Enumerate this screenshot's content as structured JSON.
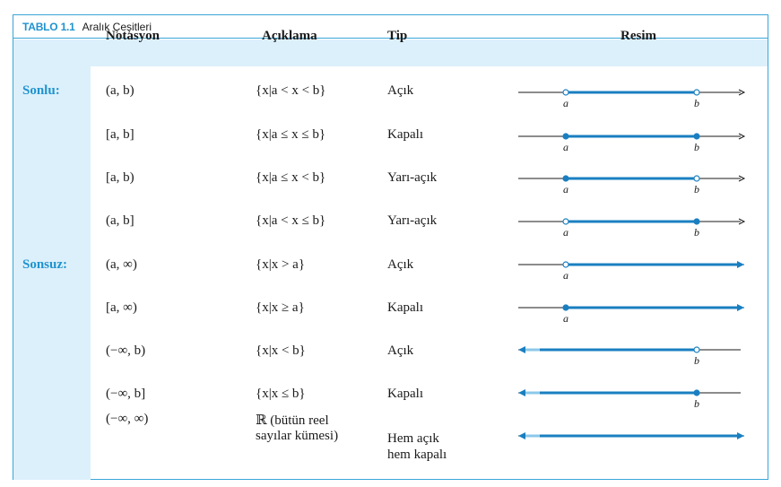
{
  "table": {
    "tag": "TABLO 1.1",
    "title": "Aralık Çeşitleri",
    "headers": {
      "notation": "Notasyon",
      "description": "Açıklama",
      "type": "Tip",
      "picture": "Resim"
    },
    "groups": {
      "finite": "Sonlu:",
      "infinite": "Sonsuz:"
    },
    "rows": [
      {
        "notation": "(a, b)",
        "description": "{x|a < x < b}",
        "type": "Açık",
        "left": "open",
        "right": "open",
        "left_label": "a",
        "right_label": "b"
      },
      {
        "notation": "[a, b]",
        "description": "{x|a ≤ x ≤ b}",
        "type": "Kapalı",
        "left": "closed",
        "right": "closed",
        "left_label": "a",
        "right_label": "b"
      },
      {
        "notation": "[a, b)",
        "description": "{x|a ≤ x < b}",
        "type": "Yarı-açık",
        "left": "closed",
        "right": "open",
        "left_label": "a",
        "right_label": "b"
      },
      {
        "notation": "(a, b]",
        "description": "{x|a < x ≤ b}",
        "type": "Yarı-açık",
        "left": "open",
        "right": "closed",
        "left_label": "a",
        "right_label": "b"
      },
      {
        "notation": "(a, ∞)",
        "description": "{x|x > a}",
        "type": "Açık",
        "left": "open",
        "right": "infinity",
        "left_label": "a",
        "right_label": ""
      },
      {
        "notation": "[a, ∞)",
        "description": "{x|x ≥ a}",
        "type": "Kapalı",
        "left": "closed",
        "right": "infinity",
        "left_label": "a",
        "right_label": ""
      },
      {
        "notation": "(−∞, b)",
        "description": "{x|x < b}",
        "type": "Açık",
        "left": "infinity",
        "right": "open",
        "left_label": "",
        "right_label": "b"
      },
      {
        "notation": "(−∞, b]",
        "description": "{x|x ≤ b}",
        "type": "Kapalı",
        "left": "infinity",
        "right": "closed",
        "left_label": "",
        "right_label": "b"
      },
      {
        "notation": "(−∞, ∞)",
        "description_line1": "ℝ (bütün reel",
        "description_line2": "sayılar kümesi)",
        "type_line1": "Hem açık",
        "type_line2": "hem kapalı",
        "left": "infinity",
        "right": "infinity",
        "left_label": "",
        "right_label": ""
      }
    ]
  },
  "colors": {
    "accent": "#1f93cf",
    "band": "#dcf0fb",
    "line": "#1a1a1a",
    "interval": "#1a7fc0"
  }
}
